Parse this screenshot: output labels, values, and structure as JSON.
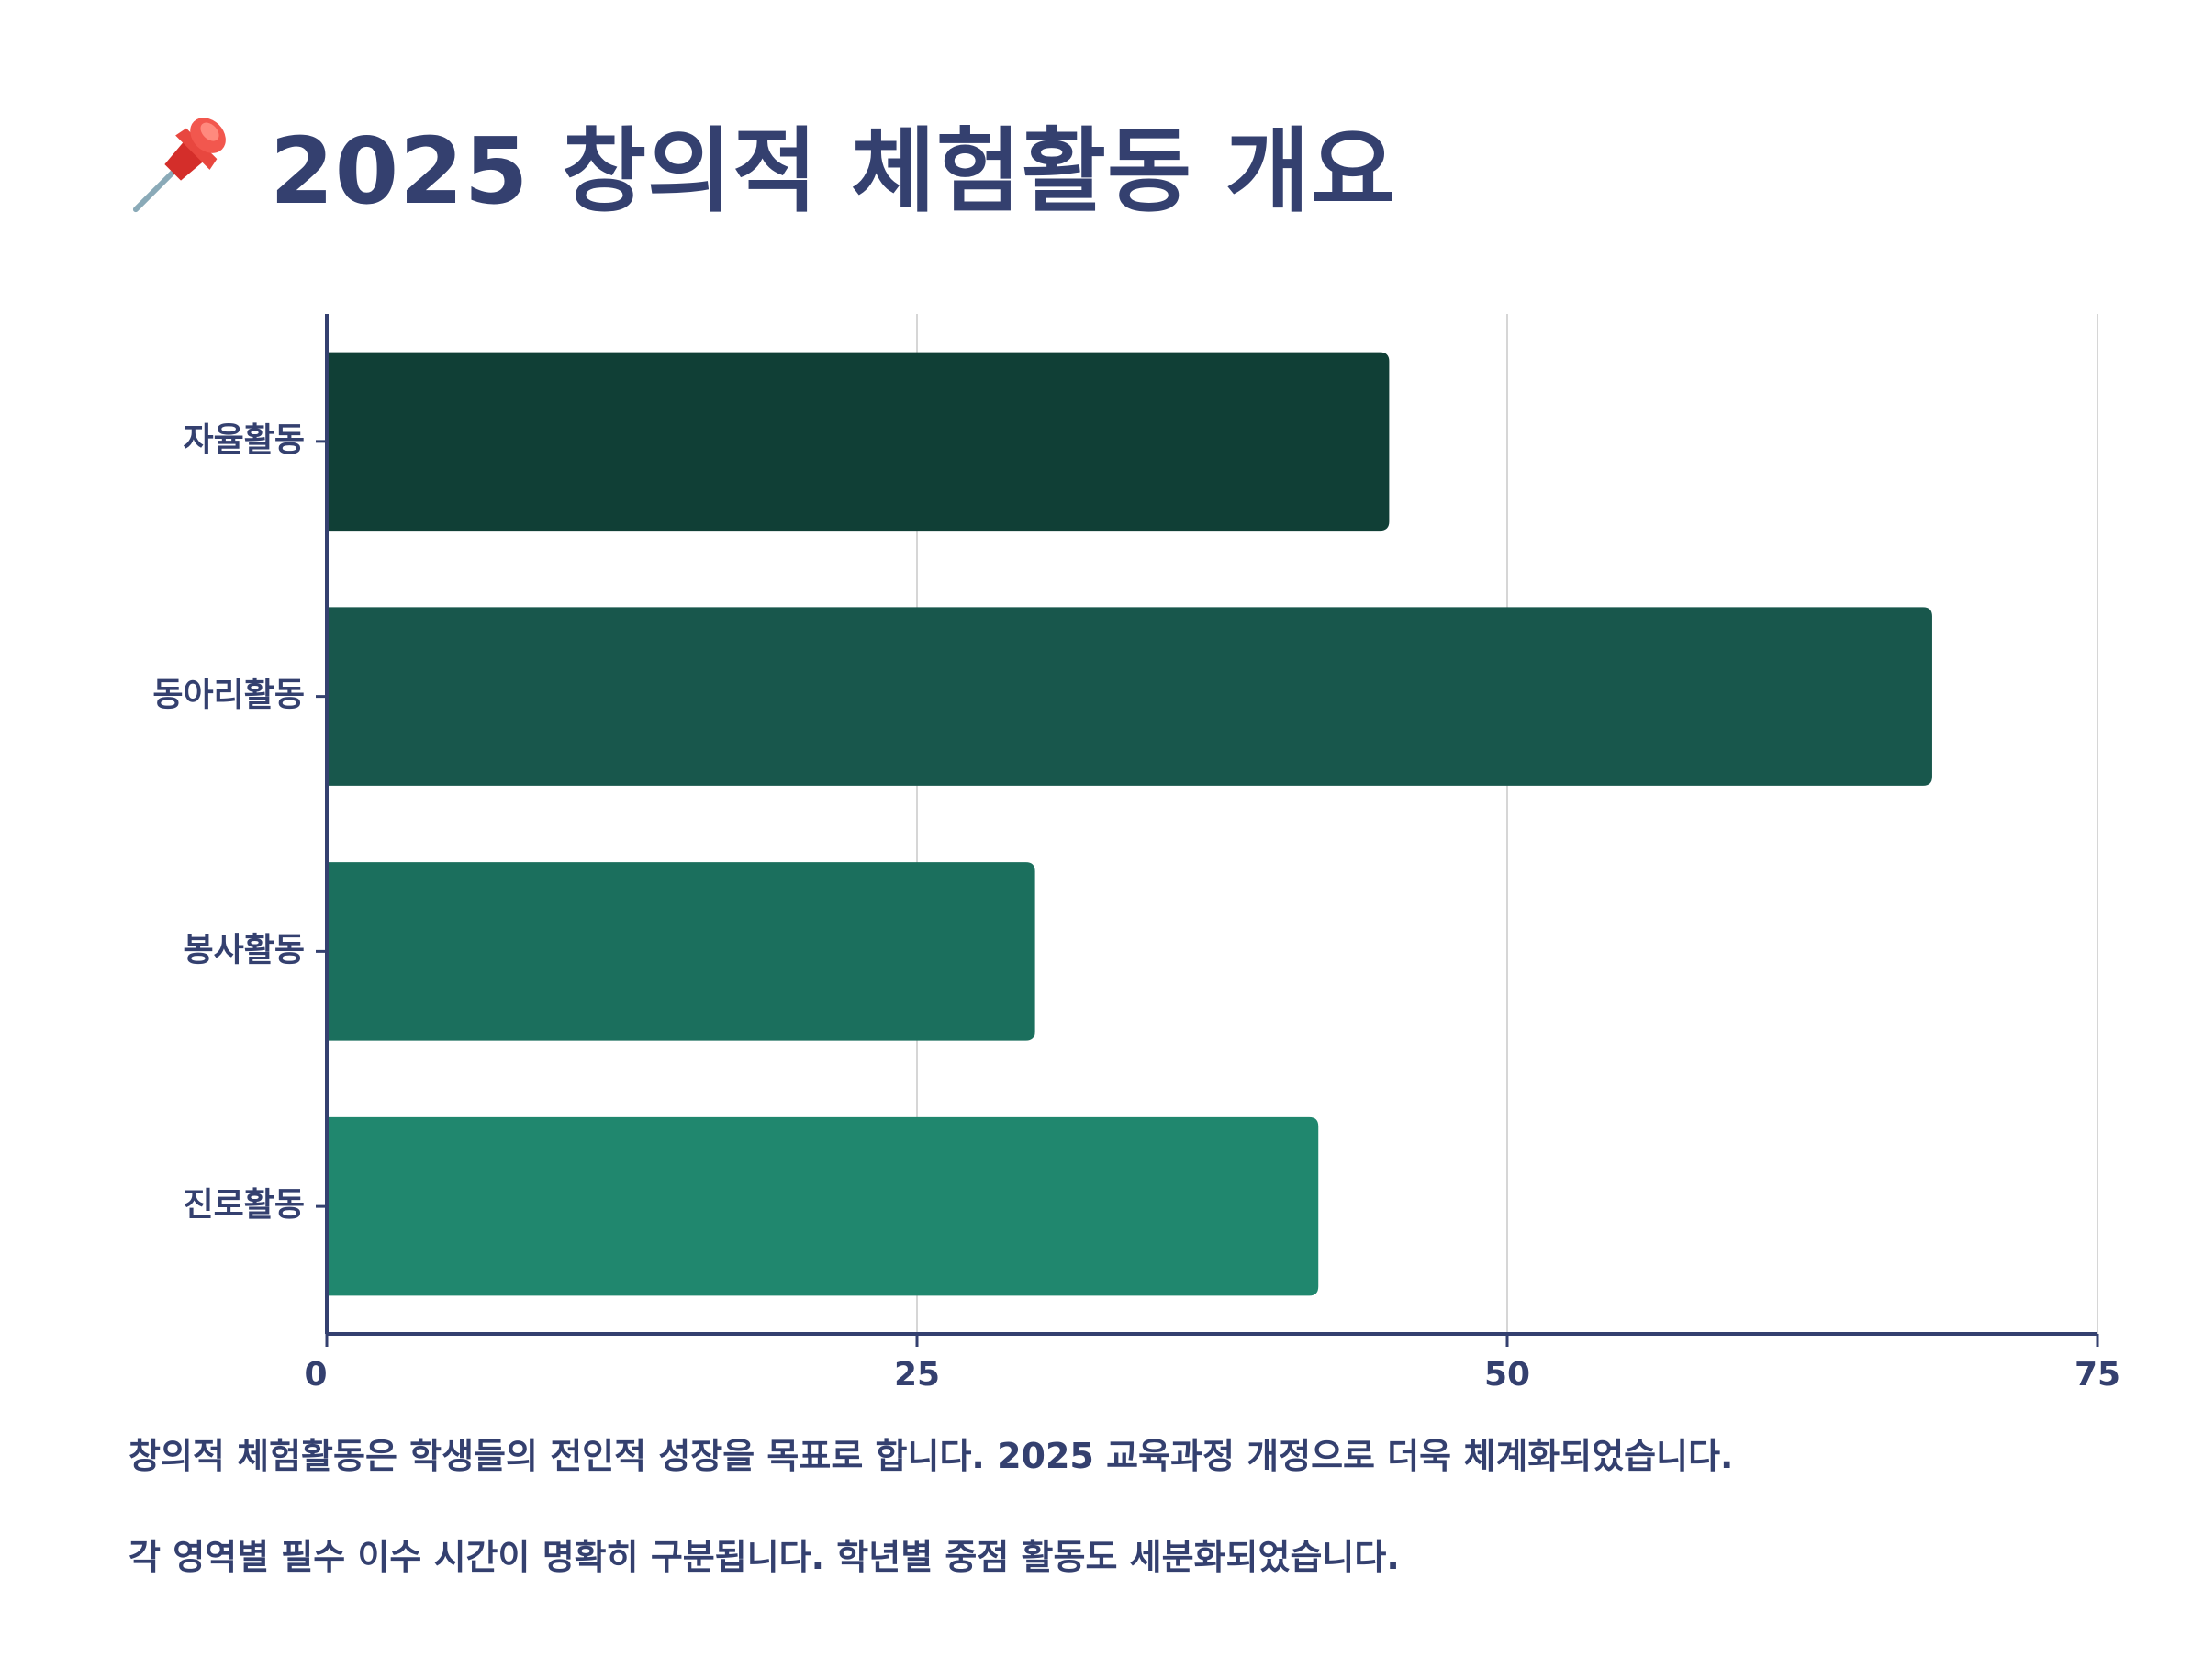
{
  "title": {
    "icon": "pushpin-icon",
    "text": "2025 창의적 체험활동 개요"
  },
  "chart_data": {
    "type": "bar",
    "orientation": "horizontal",
    "categories": [
      "자율활동",
      "동아리활동",
      "봉사활동",
      "진로활동"
    ],
    "values": [
      45,
      68,
      30,
      42
    ],
    "colors": [
      "#103f36",
      "#18574c",
      "#1b6f5d",
      "#20876e"
    ],
    "xlim": [
      0,
      75
    ],
    "x_ticks": [
      0,
      25,
      50,
      75
    ],
    "grid": "vertical",
    "axis_color": "#34406f",
    "grid_color": "#d6d6d6"
  },
  "notes": [
    "창의적 체험활동은 학생들의 전인적 성장을 목표로 합니다. 2025 교육과정 개정으로 더욱 체계화되었습니다.",
    "각 영역별 필수 이수 시간이 명확히 구분됩니다. 학년별 중점 활동도 세분화되었습니다."
  ]
}
